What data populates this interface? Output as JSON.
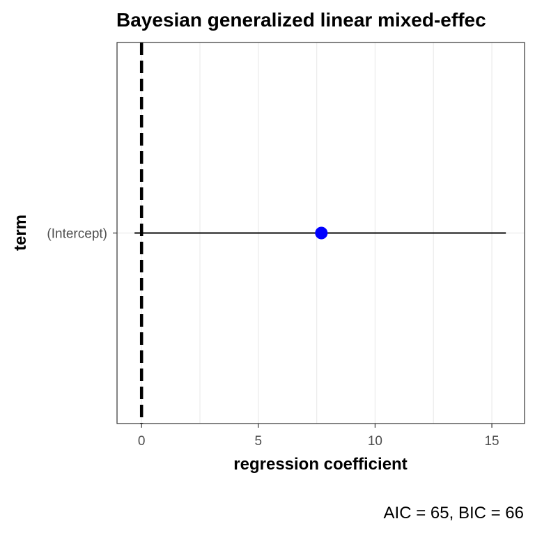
{
  "chart_data": {
    "type": "forest",
    "title": "Bayesian generalized linear mixed-effec",
    "xlabel": "regression coefficient",
    "ylabel": "term",
    "categories": [
      "(Intercept)"
    ],
    "estimates": [
      7.7
    ],
    "ci_low": [
      -0.3
    ],
    "ci_high": [
      15.6
    ],
    "reference_line": 0,
    "xlim": [
      -1.05,
      16.4
    ],
    "x_ticks": [
      0,
      5,
      10,
      15
    ],
    "x_tick_labels": [
      "0",
      "5",
      "10",
      "15"
    ],
    "x_minor_gridlines": [
      2.5,
      7.5,
      12.5
    ],
    "grid": true,
    "caption": "AIC = 65, BIC = 66",
    "colors": {
      "point": "#0000ff",
      "errorbar": "#000000",
      "reference_line": "#000000",
      "panel_border": "#333333",
      "gridline": "#ebebeb"
    }
  }
}
